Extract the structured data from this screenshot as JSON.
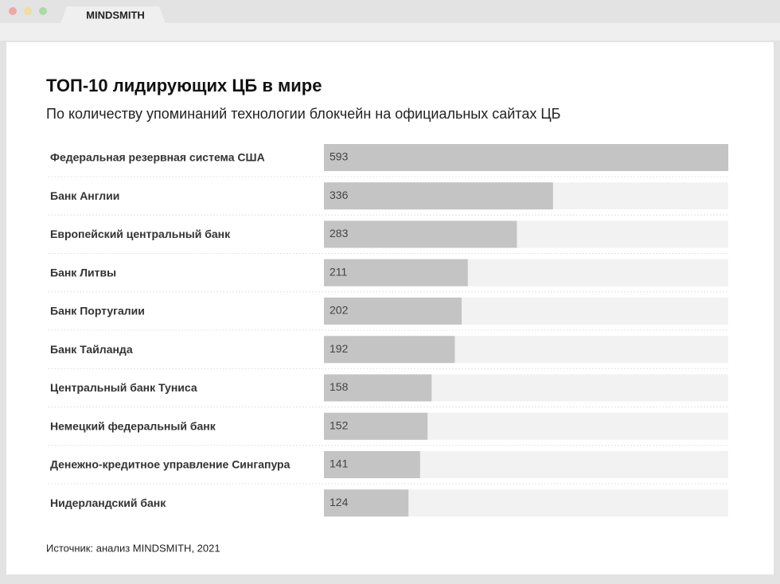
{
  "browser": {
    "tab": "MINDSMITH"
  },
  "chart_data": {
    "type": "bar",
    "orientation": "horizontal",
    "title": "ТОП-10 лидирующих ЦБ в мире",
    "subtitle": "По количеству упоминаний технологии блокчейн на официальных сайтах ЦБ",
    "categories": [
      "Федеральная резервная система США",
      "Банк Англии",
      "Европейский центральный банк",
      "Банк Литвы",
      "Банк Португалии",
      "Банк Тайланда",
      "Центральный банк Туниса",
      "Немецкий федеральный банк",
      "Денежно-кредитное управление Сингапура",
      "Нидерландский банк"
    ],
    "values": [
      593,
      336,
      283,
      211,
      202,
      192,
      158,
      152,
      141,
      124
    ],
    "color": "#c4c4c4",
    "source": "Источник: анализ MINDSMITH, 2021"
  }
}
